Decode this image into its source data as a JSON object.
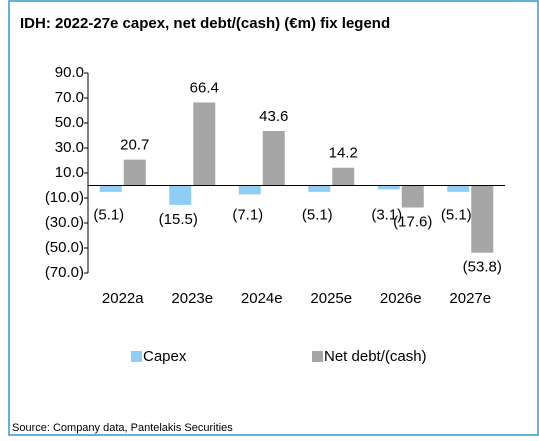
{
  "chart_data": {
    "type": "bar",
    "title": "IDH: 2022-27e capex, net debt/(cash) (€m) fix legend",
    "categories": [
      "2022a",
      "2023e",
      "2024e",
      "2025e",
      "2026e",
      "2027e"
    ],
    "series": [
      {
        "name": "Capex",
        "color": "#8fcdf5",
        "values": [
          -5.1,
          -15.5,
          -7.1,
          -5.1,
          -3.1,
          -5.1
        ],
        "value_labels": [
          "(5.1)",
          "(15.5)",
          "(7.1)",
          "(5.1)",
          "(3.1)",
          "(5.1)"
        ]
      },
      {
        "name": "Net debt/(cash)",
        "color": "#a6a6a6",
        "values": [
          20.7,
          66.4,
          43.6,
          14.2,
          -17.6,
          -53.8
        ],
        "value_labels": [
          "20.7",
          "66.4",
          "43.6",
          "14.2",
          "(17.6)",
          "(53.8)"
        ]
      }
    ],
    "ylim": [
      -70,
      90
    ],
    "yticks": [
      {
        "value": 90,
        "label": "90.0"
      },
      {
        "value": 70,
        "label": "70.0"
      },
      {
        "value": 50,
        "label": "50.0"
      },
      {
        "value": 30,
        "label": "30.0"
      },
      {
        "value": 10,
        "label": "10.0"
      },
      {
        "value": -10,
        "label": "(10.0)"
      },
      {
        "value": -30,
        "label": "(30.0)"
      },
      {
        "value": -50,
        "label": "(50.0)"
      },
      {
        "value": -70,
        "label": "(70.0)"
      }
    ],
    "source": "Source: Company data, Pantelakis Securities"
  }
}
